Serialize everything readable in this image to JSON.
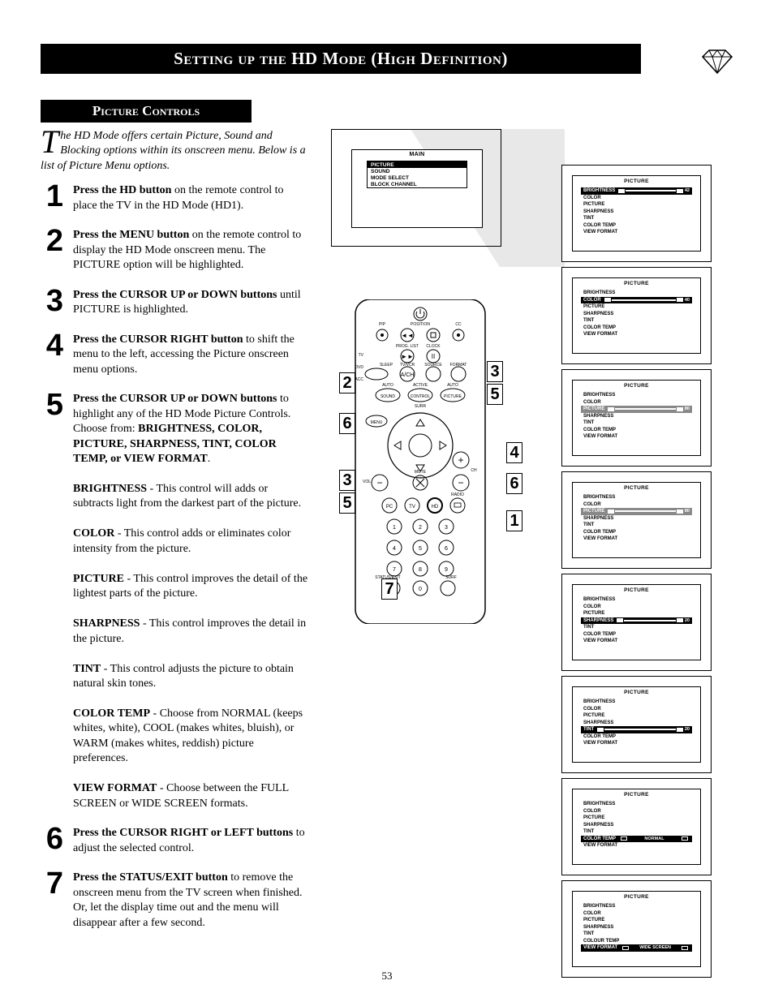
{
  "title": "Setting up the HD Mode (High Definition)",
  "subtitle": "Picture Controls",
  "intro_dropcap": "T",
  "intro": "he HD Mode offers certain Picture, Sound and Blocking options within its onscreen menu. Below is a list of Picture Menu options.",
  "steps": [
    {
      "n": "1",
      "body": "<b>Press the HD button</b> on the remote control to place the TV in the HD Mode (HD1)."
    },
    {
      "n": "2",
      "body": "<b>Press the MENU button</b> on the remote control to display the HD Mode onscreen menu. The PICTURE option will be highlighted."
    },
    {
      "n": "3",
      "body": "<b>Press the CURSOR UP or DOWN buttons</b> until PICTURE is highlighted."
    },
    {
      "n": "4",
      "body": "<b>Press the CURSOR RIGHT button</b> to shift the menu to the left, accessing the Picture onscreen menu options."
    },
    {
      "n": "5",
      "body": "<b>Press the CURSOR UP or DOWN buttons</b> to highlight any of the HD Mode Picture Controls. Choose from: <b>BRIGHTNESS, COLOR, PICTURE, SHARPNESS, TINT, COLOR TEMP, or VIEW FORMAT</b>.<br><br><b>BRIGHTNESS</b> - This control will adds or subtracts light from the darkest part of the picture.<br><br><b>COLOR</b> - This control adds or eliminates color intensity from the picture.<br><br><b>PICTURE</b> - This control improves the detail of the lightest parts of the picture.<br><br><b>SHARPNESS</b> - This control improves the detail in the picture.<br><br><b>TINT</b> - This control adjusts the picture to obtain natural skin tones.<br><br><b>COLOR TEMP</b> - Choose from NORMAL (keeps whites, white), COOL (makes whites, bluish), or WARM (makes whites, reddish) picture preferences.<br><br><b>VIEW FORMAT</b> - Choose between the FULL SCREEN or WIDE SCREEN formats."
    },
    {
      "n": "6",
      "body": "<b>Press the CURSOR RIGHT or LEFT buttons</b> to adjust the selected control."
    },
    {
      "n": "7",
      "body": "<b>Press the STATUS/EXIT button</b> to remove the onscreen menu from the TV screen when finished. Or, let the display time out and the menu will disappear after a few second."
    }
  ],
  "main_menu": {
    "title": "MAIN",
    "items": [
      "PICTURE",
      "SOUND",
      "MODE SELECT",
      "BLOCK CHANNEL"
    ],
    "selected": 0
  },
  "picture_items": [
    "BRIGHTNESS",
    "COLOR",
    "PICTURE",
    "SHARPNESS",
    "TINT",
    "COLOR TEMP",
    "VIEW FORMAT"
  ],
  "screens": [
    {
      "sel": 0,
      "val": "42",
      "type": "slider"
    },
    {
      "sel": 1,
      "val": "40",
      "type": "slider"
    },
    {
      "sel": 2,
      "val": "80",
      "type": "slider",
      "sel_style": "light"
    },
    {
      "sel": 2,
      "val": "80",
      "type": "slider",
      "sel_style": "light"
    },
    {
      "sel": 3,
      "val": "20",
      "type": "slider"
    },
    {
      "sel": 4,
      "val": "20",
      "type": "slider"
    },
    {
      "sel": 5,
      "val": "NORMAL",
      "type": "option"
    },
    {
      "sel": 6,
      "val": "WIDE SCREEN",
      "type": "option",
      "label_override": "COLOUR TEMP"
    }
  ],
  "remote_callouts_left": [
    "2",
    "6",
    "3",
    "5",
    "7"
  ],
  "remote_callouts_right": [
    "3",
    "5",
    "4",
    "6",
    "1"
  ],
  "page_number": "53",
  "colors": {
    "bar": "#000000",
    "beam": "#e8e8e8"
  }
}
